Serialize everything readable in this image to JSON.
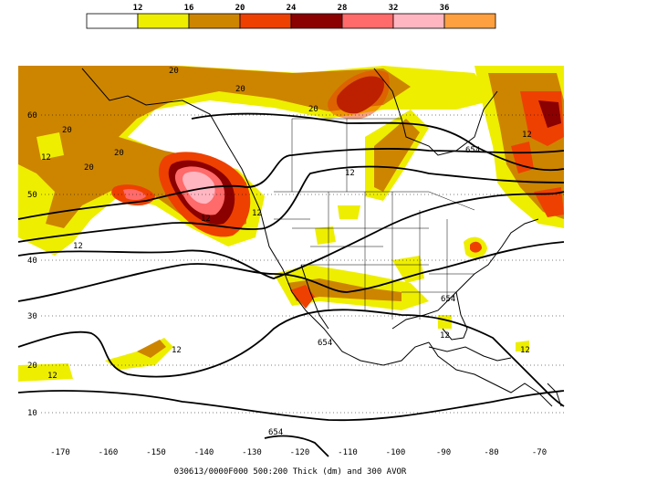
{
  "legend": {
    "bins": [
      {
        "label": "12",
        "color": "#ffffff"
      },
      {
        "label": "16",
        "color": "#eeee00"
      },
      {
        "label": "20",
        "color": "#cd8500"
      },
      {
        "label": "24",
        "color": "#ee4000"
      },
      {
        "label": "28",
        "color": "#8b0000"
      },
      {
        "label": "32",
        "color": "#ff6a6a"
      },
      {
        "label": "36",
        "color": "#ffb6c1"
      },
      {
        "label": "",
        "color": "#ffa040"
      }
    ]
  },
  "map": {
    "lon_ticks": [
      "-170",
      "-160",
      "-150",
      "-140",
      "-130",
      "-120",
      "-110",
      "-100",
      "-90",
      "-80",
      "-70"
    ],
    "lat_ticks": [
      "60",
      "50",
      "40",
      "30",
      "20",
      "10"
    ],
    "caption": "030613/0000F000 500:200 Thick (dm) and 300 AVOR",
    "contour_labels": {
      "thick_labels": [
        "654",
        "654",
        "654",
        "654"
      ],
      "vort_labels": [
        "20",
        "20",
        "20",
        "20",
        "20",
        "20",
        "12",
        "12",
        "12",
        "12",
        "12",
        "12",
        "12",
        "12",
        "12",
        "12"
      ]
    },
    "colors": {
      "yellow": "#eeee00",
      "orange": "#cd8500",
      "red": "#ee4000",
      "darkred": "#8b0000",
      "pink": "#ff6a6a",
      "lightpink": "#ffb6c1"
    }
  }
}
